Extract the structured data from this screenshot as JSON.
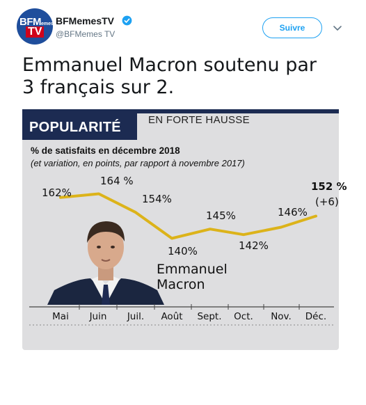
{
  "account": {
    "name": "BFMemesTV",
    "handle": "@BFMemes TV",
    "follow_label": "Suivre",
    "avatar_text": "BFMemes",
    "avatar_tv": "TV"
  },
  "tweet": {
    "lines": [
      "Emmanuel Macron soutenu par",
      "3 français sur 2."
    ]
  },
  "media": {
    "header_label": "POPULARITÉ",
    "header_tag": "EN FORTE HAUSSE",
    "subtitle": "% de satisfaits en décembre 2018",
    "note": "(et variation, en points, par rapport à novembre 2017)",
    "person_name_lines": [
      "Emmanuel",
      "Macron"
    ]
  },
  "colors": {
    "accent": "#1da1f2",
    "line": "#dcb31a",
    "banner": "#1c2b52",
    "background": "#dedee0"
  },
  "chart_data": {
    "type": "line",
    "title": "POPULARITÉ",
    "categories": [
      "Mai",
      "Juin",
      "Juil.",
      "Août",
      "Sept.",
      "Oct.",
      "Nov.",
      "Déc."
    ],
    "series": [
      {
        "values": [
          162,
          164,
          154,
          140,
          145,
          142,
          146,
          152
        ],
        "labels": [
          "162%",
          "164 %",
          "154%",
          "140%",
          "145%",
          "142%",
          "146%",
          "152 %"
        ]
      }
    ],
    "change_label": "(+6)",
    "ylim": [
      130,
      170
    ],
    "grid": false
  }
}
